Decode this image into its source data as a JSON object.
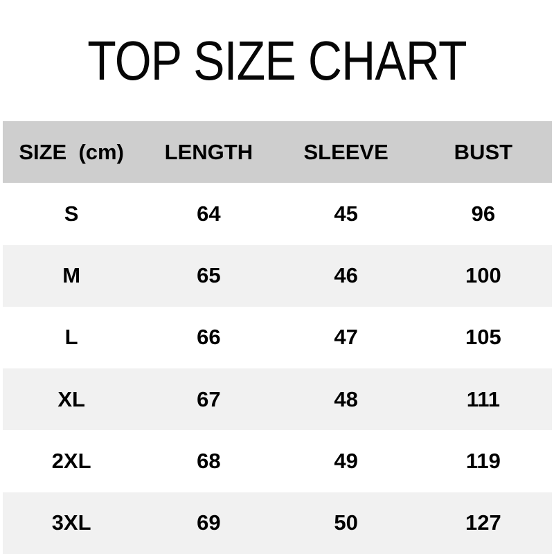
{
  "title": "TOP SIZE CHART",
  "colors": {
    "header_bg": "#cecece",
    "stripe_bg": "#f1f1f1",
    "row_bg": "#ffffff",
    "text": "#000000"
  },
  "chart_data": {
    "type": "table",
    "title": "TOP SIZE CHART",
    "unit_note": "cm",
    "columns": [
      "SIZE  (cm)",
      "LENGTH",
      "SLEEVE",
      "BUST"
    ],
    "rows": [
      [
        "S",
        "64",
        "45",
        "96"
      ],
      [
        "M",
        "65",
        "46",
        "100"
      ],
      [
        "L",
        "66",
        "47",
        "105"
      ],
      [
        "XL",
        "67",
        "48",
        "111"
      ],
      [
        "2XL",
        "68",
        "49",
        "119"
      ],
      [
        "3XL",
        "69",
        "50",
        "127"
      ]
    ]
  }
}
